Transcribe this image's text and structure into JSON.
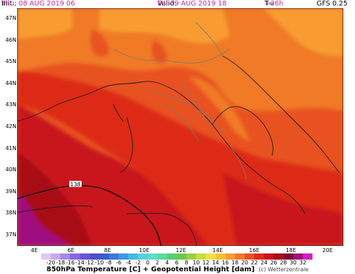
{
  "header": {
    "init_key": "Init.:",
    "init_value": "Thu, 08 AUG 2019   06",
    "valid_key": "Valid:",
    "valid_value": "Fri, 09 AUG 2019   18",
    "lead_key": "T=",
    "lead_value": "+36h",
    "model": "GFS 0.25"
  },
  "axes": {
    "latitudes": [
      "47N",
      "46N",
      "45N",
      "44N",
      "43N",
      "42N",
      "41N",
      "40N",
      "39N",
      "38N",
      "37N"
    ],
    "longitudes": [
      "4E",
      "6E",
      "8E",
      "10E",
      "12E",
      "14E",
      "16E",
      "18E",
      "20E"
    ]
  },
  "contour_label": "138",
  "colorbar": {
    "ticks": [
      "-20",
      "-18",
      "-16",
      "-14",
      "-12",
      "-10",
      "-8",
      "-6",
      "-4",
      "-2",
      "0",
      "2",
      "4",
      "6",
      "8",
      "10",
      "12",
      "14",
      "16",
      "18",
      "20",
      "22",
      "24",
      "26",
      "28",
      "30",
      "32"
    ],
    "colors": [
      "#e0c8f0",
      "#c8aaf0",
      "#a888e8",
      "#8866e0",
      "#6a55d8",
      "#4e4ccc",
      "#3c5ad0",
      "#3a7ad8",
      "#3c9ae0",
      "#48b8e8",
      "#56d0e0",
      "#60dcc8",
      "#5cd8a0",
      "#58cc70",
      "#6cc848",
      "#9cd040",
      "#c8dc3c",
      "#f0e040",
      "#f8c038",
      "#f89c30",
      "#f07a28",
      "#e85220",
      "#dc2c18",
      "#c8141c",
      "#a80c18",
      "#7c0a30",
      "#a01080",
      "#d020c0"
    ],
    "caption": "850hPa Temperature [C] + Geopotential Height [dam]",
    "source": "(c) Wetterzentrale"
  }
}
